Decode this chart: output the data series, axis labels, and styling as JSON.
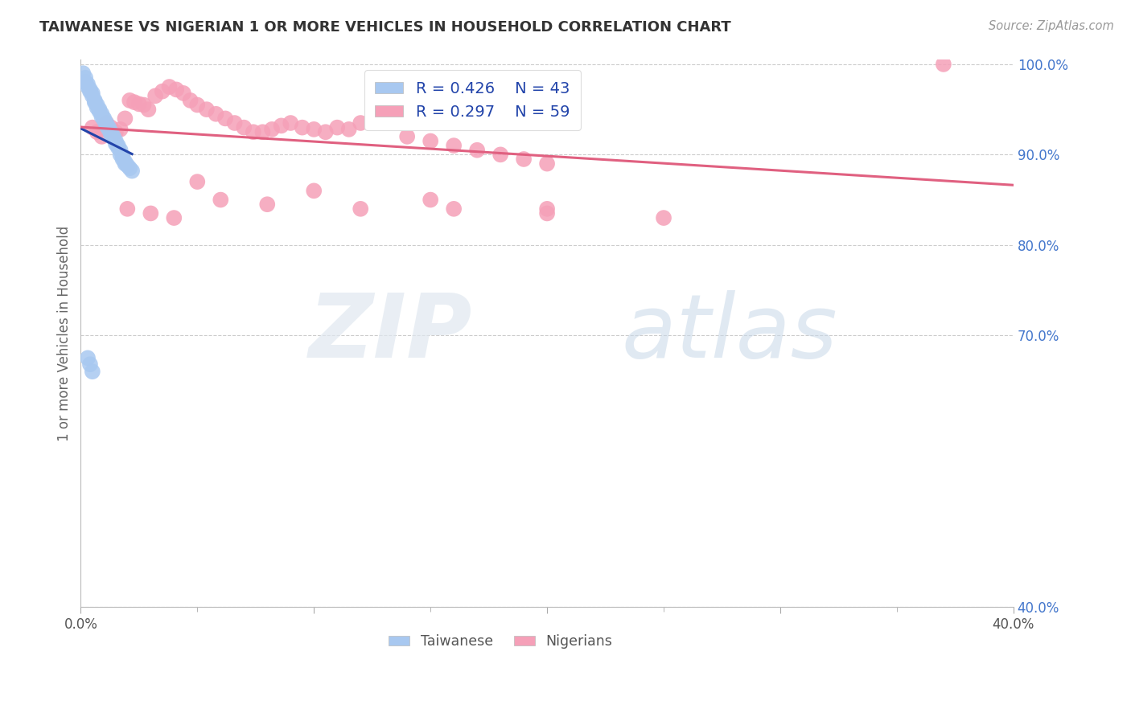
{
  "title": "TAIWANESE VS NIGERIAN 1 OR MORE VEHICLES IN HOUSEHOLD CORRELATION CHART",
  "source": "Source: ZipAtlas.com",
  "ylabel": "1 or more Vehicles in Household",
  "xlim": [
    0.0,
    0.4
  ],
  "ylim": [
    0.4,
    1.005
  ],
  "background_color": "#ffffff",
  "taiwanese_color": "#a8c8f0",
  "nigerian_color": "#f5a0b8",
  "taiwanese_line_color": "#2244aa",
  "nigerian_line_color": "#e06080",
  "legend_R_taiwan": "R = 0.426",
  "legend_N_taiwan": "N = 43",
  "legend_R_nigerian": "R = 0.297",
  "legend_N_nigerian": "N = 59",
  "taiwanese_x": [
    0.001,
    0.002,
    0.002,
    0.003,
    0.003,
    0.004,
    0.004,
    0.005,
    0.005,
    0.006,
    0.006,
    0.007,
    0.007,
    0.008,
    0.008,
    0.009,
    0.009,
    0.01,
    0.01,
    0.011,
    0.011,
    0.012,
    0.012,
    0.013,
    0.013,
    0.014,
    0.014,
    0.015,
    0.015,
    0.016,
    0.016,
    0.017,
    0.017,
    0.018,
    0.018,
    0.019,
    0.019,
    0.02,
    0.021,
    0.022,
    0.003,
    0.004,
    0.005
  ],
  "taiwanese_y": [
    0.99,
    0.985,
    0.98,
    0.978,
    0.975,
    0.972,
    0.97,
    0.968,
    0.965,
    0.96,
    0.958,
    0.955,
    0.952,
    0.95,
    0.948,
    0.945,
    0.942,
    0.94,
    0.938,
    0.935,
    0.932,
    0.93,
    0.928,
    0.925,
    0.922,
    0.92,
    0.918,
    0.915,
    0.912,
    0.91,
    0.908,
    0.905,
    0.9,
    0.898,
    0.895,
    0.892,
    0.89,
    0.888,
    0.885,
    0.882,
    0.675,
    0.668,
    0.66
  ],
  "nigerian_x": [
    0.005,
    0.007,
    0.009,
    0.011,
    0.013,
    0.015,
    0.017,
    0.019,
    0.021,
    0.023,
    0.025,
    0.027,
    0.029,
    0.032,
    0.035,
    0.038,
    0.041,
    0.044,
    0.047,
    0.05,
    0.054,
    0.058,
    0.062,
    0.066,
    0.07,
    0.074,
    0.078,
    0.082,
    0.086,
    0.09,
    0.095,
    0.1,
    0.105,
    0.11,
    0.115,
    0.12,
    0.125,
    0.13,
    0.14,
    0.15,
    0.16,
    0.17,
    0.18,
    0.19,
    0.2,
    0.05,
    0.1,
    0.15,
    0.2,
    0.25,
    0.02,
    0.03,
    0.04,
    0.06,
    0.08,
    0.12,
    0.16,
    0.2,
    0.37
  ],
  "nigerian_y": [
    0.93,
    0.925,
    0.92,
    0.935,
    0.93,
    0.925,
    0.928,
    0.94,
    0.96,
    0.958,
    0.956,
    0.955,
    0.95,
    0.965,
    0.97,
    0.975,
    0.972,
    0.968,
    0.96,
    0.955,
    0.95,
    0.945,
    0.94,
    0.935,
    0.93,
    0.925,
    0.925,
    0.928,
    0.932,
    0.935,
    0.93,
    0.928,
    0.925,
    0.93,
    0.928,
    0.935,
    0.94,
    0.938,
    0.92,
    0.915,
    0.91,
    0.905,
    0.9,
    0.895,
    0.89,
    0.87,
    0.86,
    0.85,
    0.84,
    0.83,
    0.84,
    0.835,
    0.83,
    0.85,
    0.845,
    0.84,
    0.84,
    0.835,
    1.0
  ]
}
